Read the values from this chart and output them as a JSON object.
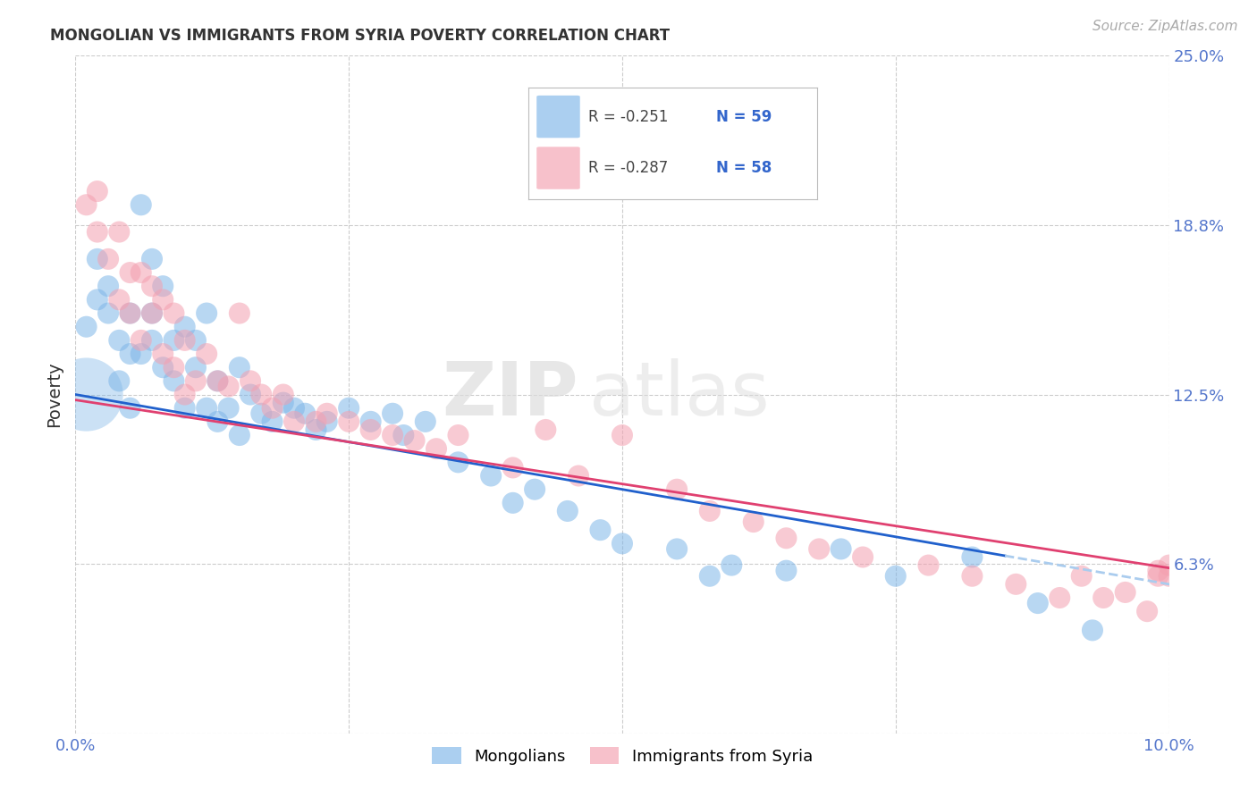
{
  "title": "MONGOLIAN VS IMMIGRANTS FROM SYRIA POVERTY CORRELATION CHART",
  "source": "Source: ZipAtlas.com",
  "ylabel_label": "Poverty",
  "xlim": [
    0.0,
    0.1
  ],
  "ylim": [
    0.0,
    0.25
  ],
  "xticks": [
    0.0,
    0.025,
    0.05,
    0.075,
    0.1
  ],
  "xtick_labels": [
    "0.0%",
    "",
    "",
    "",
    "10.0%"
  ],
  "ytick_positions": [
    0.0,
    0.0625,
    0.125,
    0.1875,
    0.25
  ],
  "ytick_labels": [
    "",
    "6.3%",
    "12.5%",
    "18.8%",
    "25.0%"
  ],
  "grid_color": "#cccccc",
  "background_color": "#ffffff",
  "mongolians_color": "#7EB6E8",
  "syria_color": "#F4A0B0",
  "regression_mongolians_color": "#2060CC",
  "regression_syria_color": "#E04070",
  "regression_mongolians_dashed_color": "#AACCEE",
  "watermark_zip": "ZIP",
  "watermark_atlas": "atlas",
  "legend_R_mongolians": "R = -0.251",
  "legend_N_mongolians": "N = 59",
  "legend_R_syria": "R = -0.287",
  "legend_N_syria": "N = 58",
  "legend_label_mongolians": "Mongolians",
  "legend_label_syria": "Immigrants from Syria",
  "mongolians_x": [
    0.001,
    0.002,
    0.002,
    0.003,
    0.003,
    0.004,
    0.004,
    0.005,
    0.005,
    0.005,
    0.006,
    0.006,
    0.007,
    0.007,
    0.007,
    0.008,
    0.008,
    0.009,
    0.009,
    0.01,
    0.01,
    0.011,
    0.011,
    0.012,
    0.012,
    0.013,
    0.013,
    0.014,
    0.015,
    0.015,
    0.016,
    0.017,
    0.018,
    0.019,
    0.02,
    0.021,
    0.022,
    0.023,
    0.025,
    0.027,
    0.029,
    0.03,
    0.032,
    0.035,
    0.038,
    0.04,
    0.042,
    0.045,
    0.048,
    0.05,
    0.055,
    0.058,
    0.06,
    0.065,
    0.07,
    0.075,
    0.082,
    0.088,
    0.093
  ],
  "mongolians_y": [
    0.15,
    0.16,
    0.175,
    0.155,
    0.165,
    0.145,
    0.13,
    0.14,
    0.155,
    0.12,
    0.195,
    0.14,
    0.175,
    0.155,
    0.145,
    0.165,
    0.135,
    0.145,
    0.13,
    0.15,
    0.12,
    0.135,
    0.145,
    0.155,
    0.12,
    0.13,
    0.115,
    0.12,
    0.135,
    0.11,
    0.125,
    0.118,
    0.115,
    0.122,
    0.12,
    0.118,
    0.112,
    0.115,
    0.12,
    0.115,
    0.118,
    0.11,
    0.115,
    0.1,
    0.095,
    0.085,
    0.09,
    0.082,
    0.075,
    0.07,
    0.068,
    0.058,
    0.062,
    0.06,
    0.068,
    0.058,
    0.065,
    0.048,
    0.038
  ],
  "mongolians_big_x": [
    0.001
  ],
  "mongolians_big_y": [
    0.125
  ],
  "mongolians_big_s": 3500,
  "syria_x": [
    0.001,
    0.002,
    0.002,
    0.003,
    0.004,
    0.004,
    0.005,
    0.005,
    0.006,
    0.006,
    0.007,
    0.007,
    0.008,
    0.008,
    0.009,
    0.009,
    0.01,
    0.01,
    0.011,
    0.012,
    0.013,
    0.014,
    0.015,
    0.016,
    0.017,
    0.018,
    0.019,
    0.02,
    0.022,
    0.023,
    0.025,
    0.027,
    0.029,
    0.031,
    0.033,
    0.035,
    0.04,
    0.043,
    0.046,
    0.05,
    0.055,
    0.058,
    0.062,
    0.065,
    0.068,
    0.072,
    0.078,
    0.082,
    0.086,
    0.09,
    0.092,
    0.094,
    0.096,
    0.098,
    0.099,
    0.099,
    0.1,
    0.1
  ],
  "syria_y": [
    0.195,
    0.2,
    0.185,
    0.175,
    0.185,
    0.16,
    0.17,
    0.155,
    0.17,
    0.145,
    0.165,
    0.155,
    0.16,
    0.14,
    0.155,
    0.135,
    0.145,
    0.125,
    0.13,
    0.14,
    0.13,
    0.128,
    0.155,
    0.13,
    0.125,
    0.12,
    0.125,
    0.115,
    0.115,
    0.118,
    0.115,
    0.112,
    0.11,
    0.108,
    0.105,
    0.11,
    0.098,
    0.112,
    0.095,
    0.11,
    0.09,
    0.082,
    0.078,
    0.072,
    0.068,
    0.065,
    0.062,
    0.058,
    0.055,
    0.05,
    0.058,
    0.05,
    0.052,
    0.045,
    0.058,
    0.06,
    0.062,
    0.058
  ]
}
